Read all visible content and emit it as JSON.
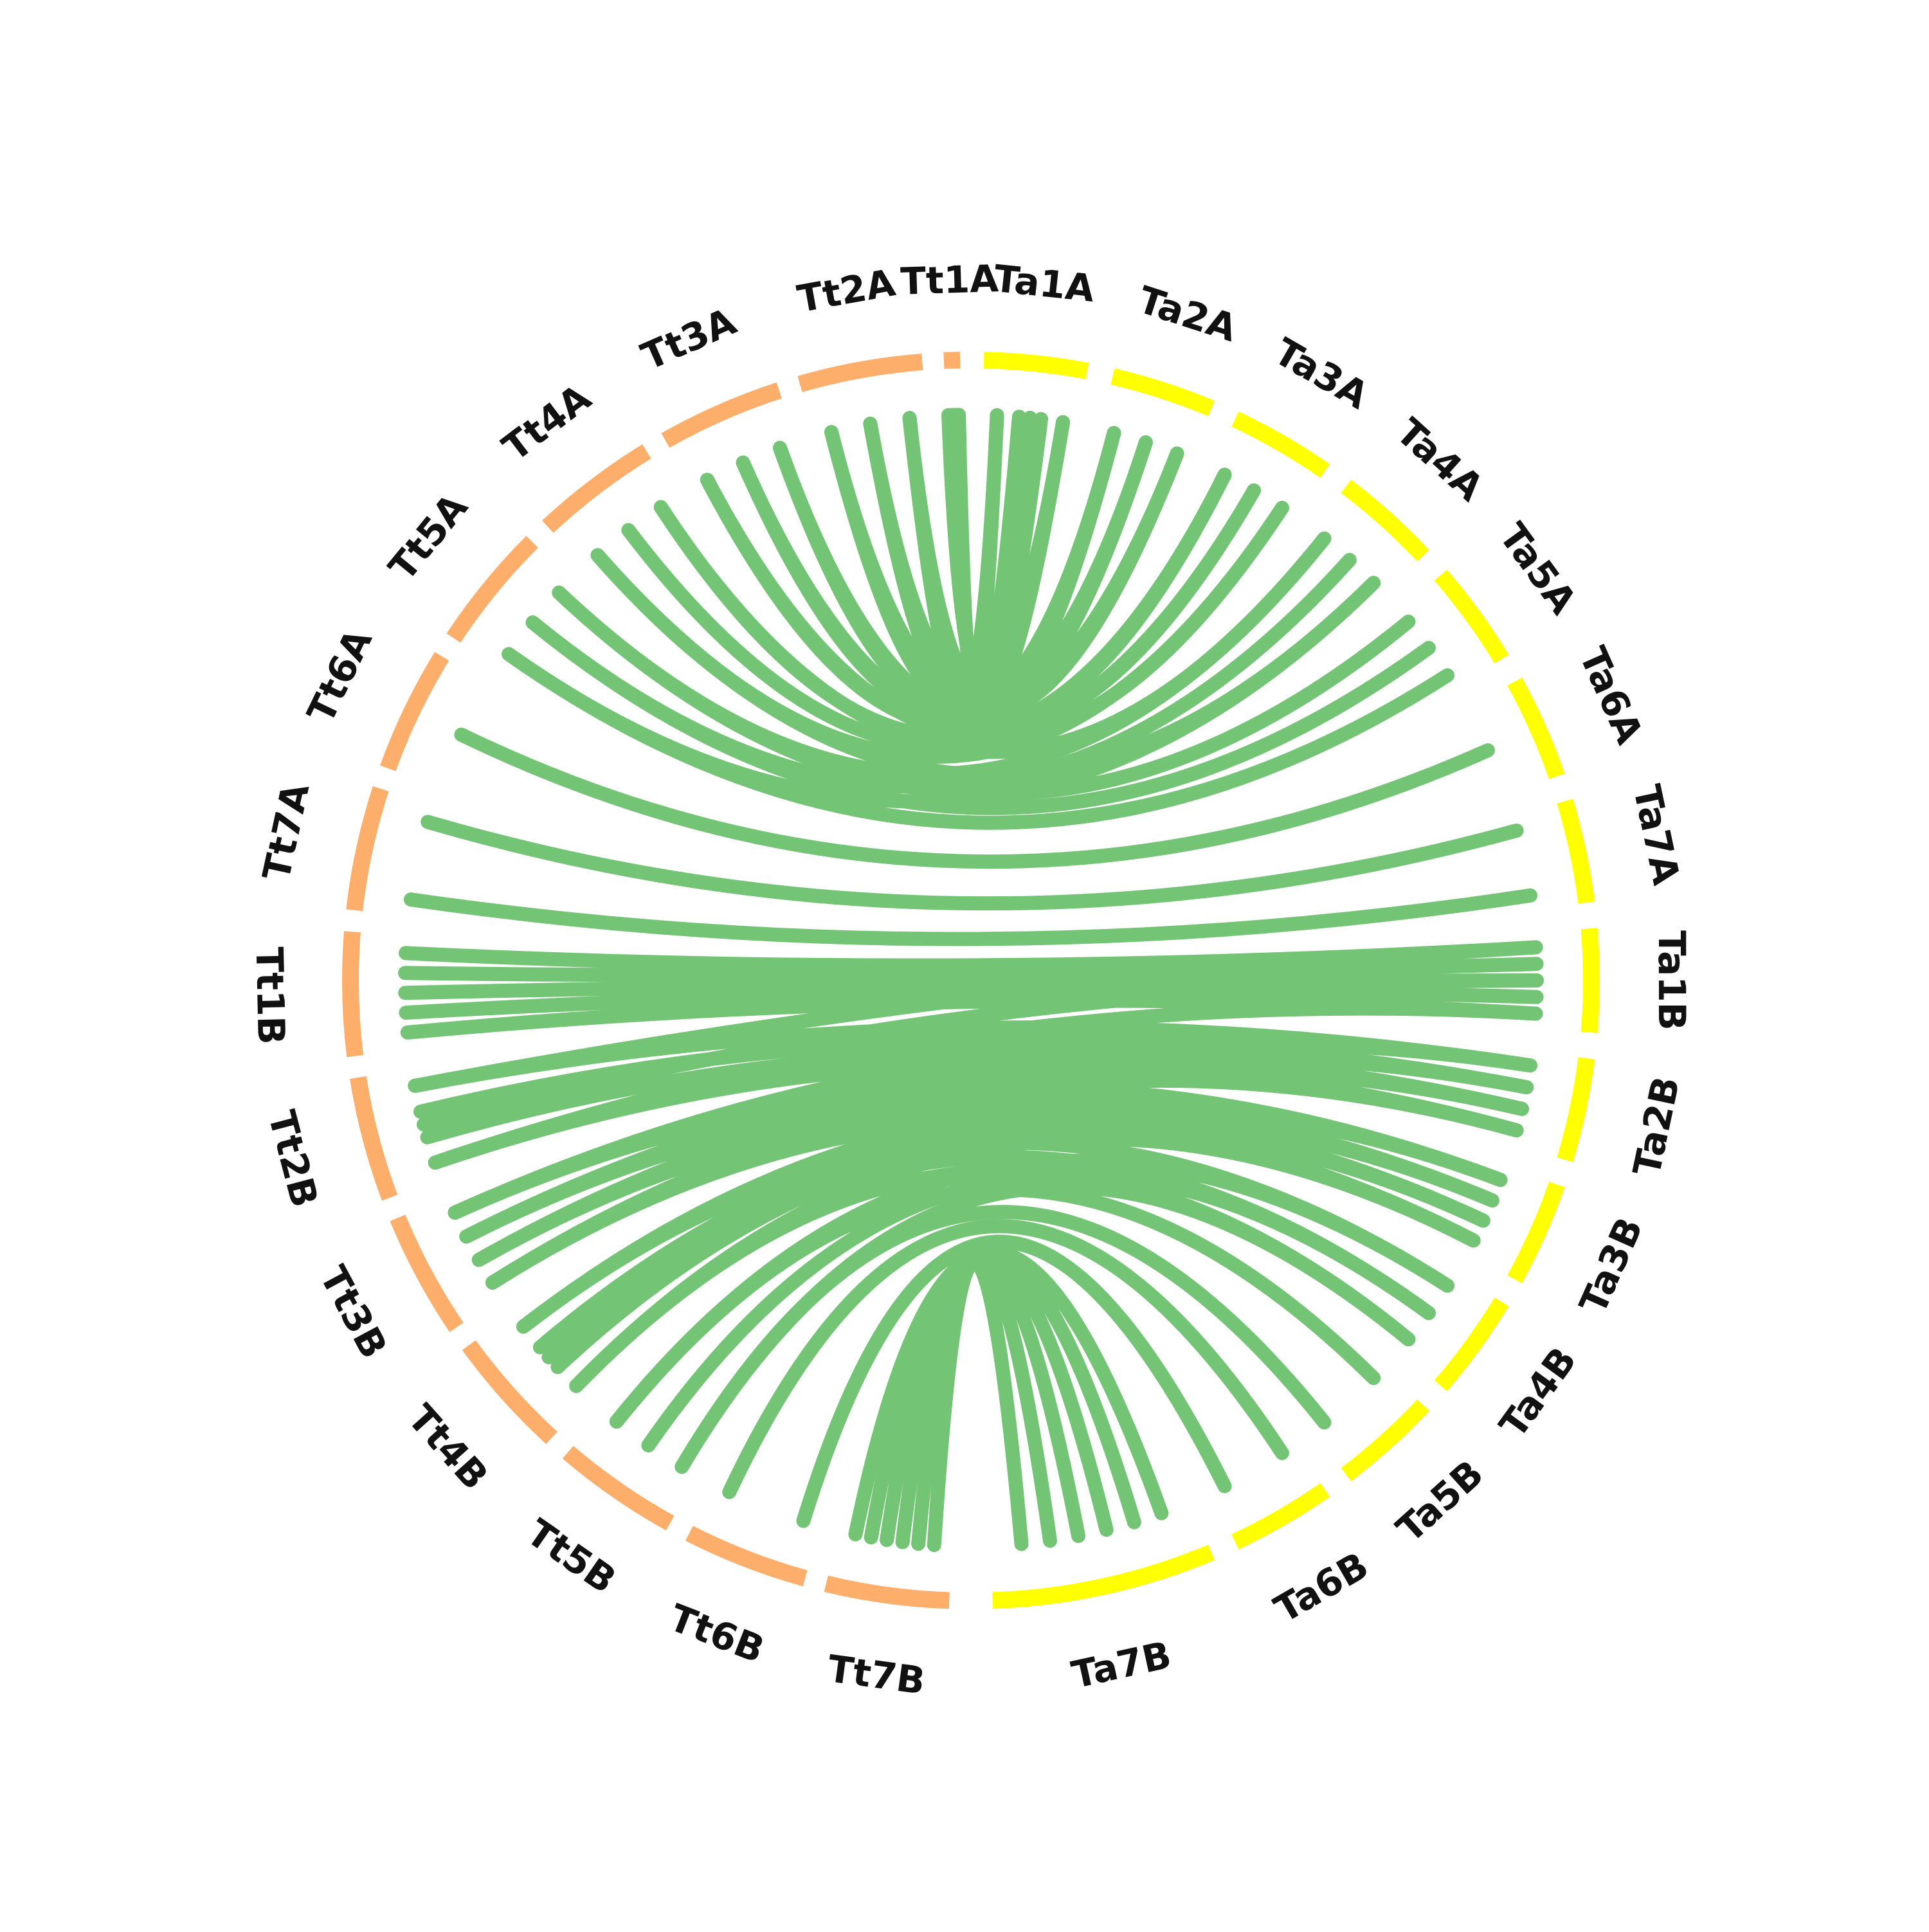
{
  "colors": {
    "tt_segment": "#fdae6b",
    "ta_segment": "#ffff00",
    "link": "#74c476",
    "label": "#111111"
  },
  "chromosomes": [
    {
      "id": "Ta1A",
      "label": "Ta1A",
      "group": "ta",
      "start": 1.2,
      "end": 10.8
    },
    {
      "id": "Ta2A",
      "label": "Ta2A",
      "group": "ta",
      "start": 13.2,
      "end": 22.8
    },
    {
      "id": "Ta3A",
      "label": "Ta3A",
      "group": "ta",
      "start": 25.2,
      "end": 34.8
    },
    {
      "id": "Ta4A",
      "label": "Ta4A",
      "group": "ta",
      "start": 37.2,
      "end": 46.8
    },
    {
      "id": "Ta5A",
      "label": "Ta5A",
      "group": "ta",
      "start": 49.2,
      "end": 58.8
    },
    {
      "id": "Ta6A",
      "label": "Ta6A",
      "group": "ta",
      "start": 61.2,
      "end": 70.8
    },
    {
      "id": "Ta7A",
      "label": "Ta7A",
      "group": "ta",
      "start": 73.2,
      "end": 82.8
    },
    {
      "id": "Ta1B",
      "label": "Ta1B",
      "group": "ta",
      "start": 85.2,
      "end": 94.8
    },
    {
      "id": "Ta2B",
      "label": "Ta2B",
      "group": "ta",
      "start": 97.2,
      "end": 106.8
    },
    {
      "id": "Ta3B",
      "label": "Ta3B",
      "group": "ta",
      "start": 109.2,
      "end": 118.8
    },
    {
      "id": "Ta4B",
      "label": "Ta4B",
      "group": "ta",
      "start": 121.2,
      "end": 130.8
    },
    {
      "id": "Ta5B",
      "label": "Ta5B",
      "group": "ta",
      "start": 133.2,
      "end": 142.8
    },
    {
      "id": "Ta6B",
      "label": "Ta6B",
      "group": "ta",
      "start": 145.2,
      "end": 154.8
    },
    {
      "id": "Ta7B",
      "label": "Ta7B",
      "group": "ta",
      "start": 157.2,
      "end": 178.0
    },
    {
      "id": "Tt7B",
      "label": "Tt7B",
      "group": "tt",
      "start": 182.0,
      "end": 193.5
    },
    {
      "id": "Tt6B",
      "label": "Tt6B",
      "group": "tt",
      "start": 195.5,
      "end": 207.0
    },
    {
      "id": "Tt5B",
      "label": "Tt5B",
      "group": "tt",
      "start": 209.0,
      "end": 220.5
    },
    {
      "id": "Tt4B",
      "label": "Tt4B",
      "group": "tt",
      "start": 222.5,
      "end": 234.0
    },
    {
      "id": "Tt3B",
      "label": "Tt3B",
      "group": "tt",
      "start": 236.0,
      "end": 247.5
    },
    {
      "id": "Tt2B",
      "label": "Tt2B",
      "group": "tt",
      "start": 249.5,
      "end": 261.0
    },
    {
      "id": "Tt1B",
      "label": "Tt1B",
      "group": "tt",
      "start": 263.0,
      "end": 274.5
    },
    {
      "id": "Tt7A",
      "label": "Tt7A",
      "group": "tt",
      "start": 276.5,
      "end": 288.0
    },
    {
      "id": "Tt6A",
      "label": "Tt6A",
      "group": "tt",
      "start": 290.0,
      "end": 301.5
    },
    {
      "id": "Tt5A",
      "label": "Tt5A",
      "group": "tt",
      "start": 303.5,
      "end": 315.0
    },
    {
      "id": "Tt4A",
      "label": "Tt4A",
      "group": "tt",
      "start": 317.0,
      "end": 328.5
    },
    {
      "id": "Tt3A",
      "label": "Tt3A",
      "group": "tt",
      "start": 330.5,
      "end": 342.0
    },
    {
      "id": "Tt2A",
      "label": "Tt2A",
      "group": "tt",
      "start": 344.0,
      "end": 355.5
    },
    {
      "id": "Tt1A",
      "label": "Tt1A",
      "group": "tt",
      "start": 357.5,
      "end": 359.0
    }
  ],
  "links": [
    {
      "from": "Ta1A",
      "to": "Tt1A",
      "count": 4
    },
    {
      "from": "Ta1A",
      "to": "Tt2A",
      "count": 3
    },
    {
      "from": "Ta2A",
      "to": "Tt2A",
      "count": 3
    },
    {
      "from": "Ta2A",
      "to": "Tt3A",
      "count": 3
    },
    {
      "from": "Ta3A",
      "to": "Tt3A",
      "count": 3
    },
    {
      "from": "Ta3A",
      "to": "Tt4A",
      "count": 3
    },
    {
      "from": "Ta4A",
      "to": "Tt4A",
      "count": 2
    },
    {
      "from": "Ta4A",
      "to": "Tt5A",
      "count": 3
    },
    {
      "from": "Ta5A",
      "to": "Tt5A",
      "count": 3
    },
    {
      "from": "Ta6A",
      "to": "Tt6A",
      "count": 1
    },
    {
      "from": "Ta7A",
      "to": "Tt7A",
      "count": 2
    },
    {
      "from": "Ta1B",
      "to": "Tt1B",
      "count": 5
    },
    {
      "from": "Ta1B",
      "to": "Tt2B",
      "count": 3
    },
    {
      "from": "Ta2B",
      "to": "Tt2B",
      "count": 4
    },
    {
      "from": "Ta2B",
      "to": "Tt3B",
      "count": 4
    },
    {
      "from": "Ta3B",
      "to": "Tt3B",
      "count": 4
    },
    {
      "from": "Ta3B",
      "to": "Tt4B",
      "count": 4
    },
    {
      "from": "Ta4B",
      "to": "Tt4B",
      "count": 3
    },
    {
      "from": "Ta4B",
      "to": "Tt5B",
      "count": 3
    },
    {
      "from": "Ta5B",
      "to": "Tt5B",
      "count": 2
    },
    {
      "from": "Ta6B",
      "to": "Tt6B",
      "count": 2
    },
    {
      "from": "Ta7B",
      "to": "Tt7B",
      "count": 6
    }
  ]
}
